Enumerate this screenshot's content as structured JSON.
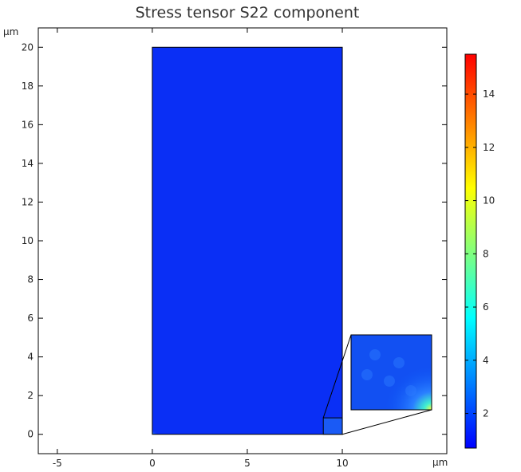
{
  "chart_data": {
    "type": "heatmap",
    "title": "Stress tensor S22 component",
    "x_unit": "μm",
    "y_unit": "μm",
    "xlim": [
      -6.0,
      15.5
    ],
    "ylim": [
      -1.0,
      21.0
    ],
    "x_ticks": [
      -5,
      0,
      5,
      10
    ],
    "y_ticks": [
      0,
      2,
      4,
      6,
      8,
      10,
      12,
      14,
      16,
      18,
      20
    ],
    "domain_x": [
      0,
      10
    ],
    "domain_y": [
      0,
      20
    ],
    "inset_source_x": [
      9,
      10
    ],
    "inset_source_y": [
      0,
      0.85
    ],
    "colorbar": {
      "min": 0.7,
      "max": 15.5,
      "ticks": [
        2,
        4,
        6,
        8,
        10,
        12,
        14
      ]
    },
    "dominant_value": 1.3,
    "peak_location": "bottom-right corner",
    "colors": {
      "field": "#0a2ff5",
      "scale": [
        "#0000ff",
        "#00ffff",
        "#ffff00",
        "#ff0000"
      ]
    }
  }
}
